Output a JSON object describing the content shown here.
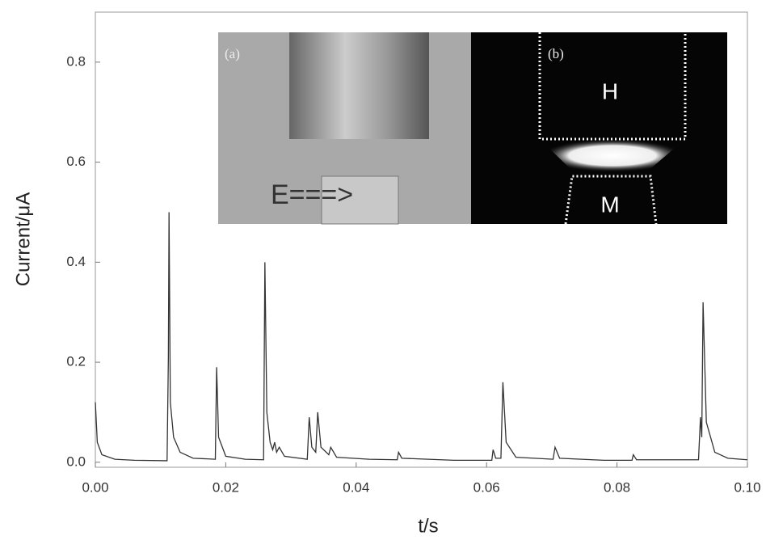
{
  "chart_data": {
    "type": "line",
    "xlabel": "t/s",
    "ylabel": "Current/μA",
    "annotations": [
      "(a)",
      "E===>",
      "(b)",
      "H",
      "M"
    ],
    "color": "#333333",
    "xlim": [
      0,
      0.1
    ],
    "ylim": [
      -0.01,
      0.9
    ],
    "xticks": [
      {
        "value": 0,
        "label": "0.00"
      },
      {
        "value": 0.02,
        "label": "0.02"
      },
      {
        "value": 0.04,
        "label": "0.04"
      },
      {
        "value": 0.06,
        "label": "0.06"
      },
      {
        "value": 0.08,
        "label": "0.08"
      },
      {
        "value": 0.1,
        "label": "0.10"
      }
    ],
    "yticks": [
      {
        "value": 0,
        "label": "0.0"
      },
      0.2,
      0.4,
      0.6,
      0.8
    ],
    "x": [
      0,
      0.0003,
      0.001,
      0.003,
      0.006,
      0.011,
      0.0112,
      0.0113,
      0.0115,
      0.012,
      0.013,
      0.015,
      0.0184,
      0.0186,
      0.0189,
      0.02,
      0.023,
      0.0258,
      0.026,
      0.0263,
      0.0268,
      0.0272,
      0.0275,
      0.0278,
      0.0282,
      0.029,
      0.0325,
      0.0328,
      0.0332,
      0.0338,
      0.0341,
      0.0346,
      0.0358,
      0.0361,
      0.037,
      0.042,
      0.0463,
      0.0465,
      0.047,
      0.055,
      0.0608,
      0.061,
      0.0614,
      0.0622,
      0.0625,
      0.063,
      0.0645,
      0.0702,
      0.0705,
      0.0712,
      0.078,
      0.0823,
      0.0825,
      0.083,
      0.0925,
      0.0928,
      0.093,
      0.0932,
      0.0937,
      0.095,
      0.097,
      0.1
    ],
    "values": [
      0.12,
      0.04,
      0.015,
      0.006,
      0.004,
      0.003,
      0.21,
      0.5,
      0.12,
      0.05,
      0.02,
      0.008,
      0.006,
      0.19,
      0.05,
      0.012,
      0.006,
      0.005,
      0.4,
      0.1,
      0.04,
      0.025,
      0.04,
      0.02,
      0.03,
      0.012,
      0.006,
      0.09,
      0.03,
      0.02,
      0.1,
      0.03,
      0.015,
      0.03,
      0.01,
      0.006,
      0.005,
      0.02,
      0.008,
      0.004,
      0.004,
      0.025,
      0.008,
      0.008,
      0.16,
      0.04,
      0.01,
      0.006,
      0.03,
      0.008,
      0.004,
      0.004,
      0.015,
      0.005,
      0.005,
      0.09,
      0.05,
      0.32,
      0.08,
      0.02,
      0.008,
      0.005
    ]
  }
}
